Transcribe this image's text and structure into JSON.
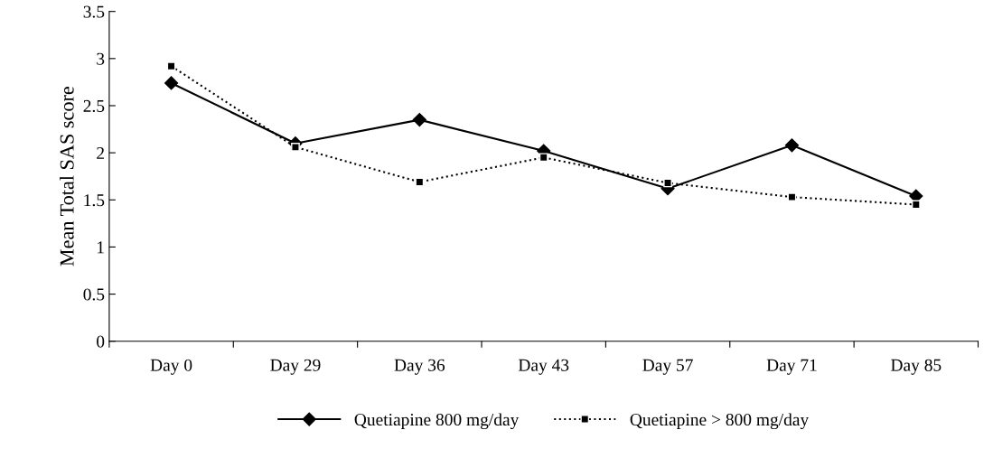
{
  "chart_data": {
    "type": "line",
    "ylabel": "Mean Total SAS score",
    "categories": [
      "Day 0",
      "Day 29",
      "Day 36",
      "Day 43",
      "Day 57",
      "Day 71",
      "Day 85"
    ],
    "series": [
      {
        "name": "Quetiapine 800 mg/day",
        "color": "#000000",
        "marker": "diamond",
        "line_style": "solid",
        "values": [
          2.74,
          2.1,
          2.35,
          2.02,
          1.62,
          2.08,
          1.54
        ]
      },
      {
        "name": "Quetiapine > 800 mg/day",
        "color": "#000000",
        "marker": "square",
        "line_style": "dotted",
        "values": [
          2.92,
          2.06,
          1.69,
          1.95,
          1.68,
          1.53,
          1.45
        ]
      }
    ],
    "ylim": [
      0,
      3.5
    ],
    "yticks": [
      0,
      0.5,
      1,
      1.5,
      2,
      2.5,
      3,
      3.5
    ],
    "grid": false,
    "legend": "bottom"
  }
}
